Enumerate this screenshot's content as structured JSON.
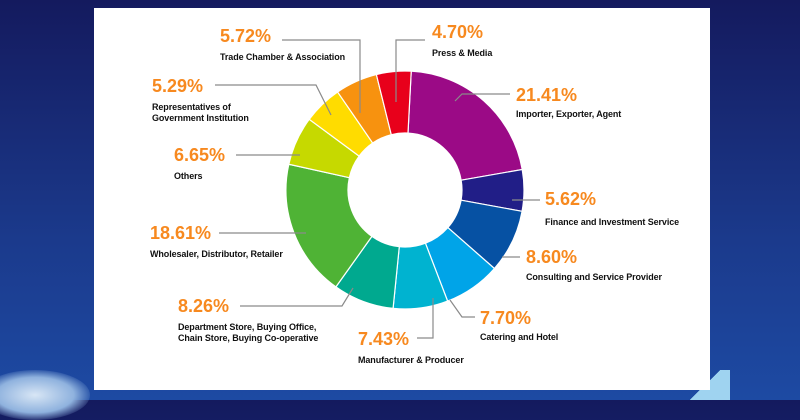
{
  "chart_data": {
    "type": "pie",
    "variant": "donut",
    "legend": "none",
    "slices": [
      {
        "label": "Importer, Exporter, Agent",
        "value": 21.41,
        "value_label": "21.41%",
        "color": "#9b0a86"
      },
      {
        "label": "Finance and Investment Service",
        "value": 5.62,
        "value_label": "5.62%",
        "color": "#211e87"
      },
      {
        "label": "Consulting and Service Provider",
        "value": 8.6,
        "value_label": "8.60%",
        "color": "#0651a3"
      },
      {
        "label": "Catering and Hotel",
        "value": 7.7,
        "value_label": "7.70%",
        "color": "#00a4e8"
      },
      {
        "label": "Manufacturer & Producer",
        "value": 7.43,
        "value_label": "7.43%",
        "color": "#00b3d0"
      },
      {
        "label": "Department Store, Buying Office, Chain Store, Buying Co-operative",
        "label_lines": [
          "Department Store, Buying Office,",
          "Chain Store, Buying Co-operative"
        ],
        "value": 8.26,
        "value_label": "8.26%",
        "color": "#00a98f"
      },
      {
        "label": "Wholesaler, Distributor, Retailer",
        "value": 18.61,
        "value_label": "18.61%",
        "color": "#4fb335"
      },
      {
        "label": "Others",
        "value": 6.65,
        "value_label": "6.65%",
        "color": "#c6d900"
      },
      {
        "label": "Representatives of Government Institution",
        "label_lines": [
          "Representatives of",
          "Government Institution"
        ],
        "value": 5.29,
        "value_label": "5.29%",
        "color": "#ffdc00"
      },
      {
        "label": "Trade Chamber & Association",
        "value": 5.72,
        "value_label": "5.72%",
        "color": "#f7920f"
      },
      {
        "label": "Press & Media",
        "value": 4.7,
        "value_label": "4.70%",
        "color": "#e8001b"
      }
    ],
    "value_label_color": "#f7891f"
  }
}
